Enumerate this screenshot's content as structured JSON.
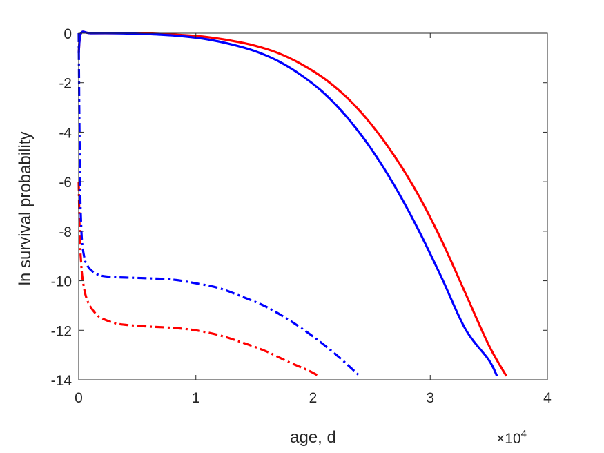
{
  "chart_data": {
    "type": "line",
    "title": "",
    "xlabel": "age, d",
    "ylabel": "ln survival probability",
    "xlim": [
      0,
      40000
    ],
    "ylim": [
      -14,
      0
    ],
    "x_ticks": [
      0,
      10000,
      20000,
      30000,
      40000
    ],
    "x_tick_labels": [
      "0",
      "1",
      "2",
      "3",
      "4"
    ],
    "y_ticks": [
      0,
      -2,
      -4,
      -6,
      -8,
      -10,
      -12,
      -14
    ],
    "y_tick_labels": [
      "0",
      "-2",
      "-4",
      "-6",
      "-8",
      "-10",
      "-12",
      "-14"
    ],
    "x_exponent": {
      "base": "×10",
      "power": "4"
    },
    "grid": false,
    "legend": "none",
    "series": [
      {
        "color": "#ff0000",
        "style": "solid",
        "x": [
          0,
          200,
          1000,
          3000,
          5000,
          7000,
          9000,
          11000,
          13000,
          15000,
          17000,
          19000,
          21000,
          23000,
          25000,
          27000,
          29000,
          31000,
          33000,
          35000,
          36500
        ],
        "y": [
          -0.8,
          0,
          0,
          0,
          0,
          -0.03,
          -0.08,
          -0.16,
          -0.3,
          -0.5,
          -0.8,
          -1.25,
          -1.85,
          -2.65,
          -3.7,
          -5.0,
          -6.55,
          -8.4,
          -10.5,
          -12.6,
          -13.85
        ]
      },
      {
        "color": "#0000ff",
        "style": "solid",
        "x": [
          0,
          200,
          1000,
          3000,
          5000,
          7000,
          9000,
          11000,
          13000,
          15000,
          17000,
          19000,
          21000,
          23000,
          25000,
          27000,
          29000,
          31000,
          33000,
          35000,
          35700
        ],
        "y": [
          -0.8,
          0,
          0,
          0,
          -0.02,
          -0.06,
          -0.13,
          -0.25,
          -0.45,
          -0.72,
          -1.12,
          -1.7,
          -2.45,
          -3.45,
          -4.7,
          -6.2,
          -7.95,
          -9.9,
          -11.95,
          -13.2,
          -13.85
        ]
      },
      {
        "color": "#ff0000",
        "style": "dashdot",
        "x": [
          0,
          100,
          200,
          300,
          500,
          700,
          1000,
          1500,
          2000,
          3000,
          4000,
          6000,
          8000,
          10000,
          12000,
          14000,
          16000,
          18000,
          19500,
          20500
        ],
        "y": [
          -6.0,
          -8.3,
          -9.2,
          -9.8,
          -10.4,
          -10.75,
          -11.05,
          -11.35,
          -11.52,
          -11.7,
          -11.78,
          -11.85,
          -11.9,
          -12.0,
          -12.2,
          -12.5,
          -12.85,
          -13.3,
          -13.6,
          -13.85
        ]
      },
      {
        "color": "#0000ff",
        "style": "dashdot",
        "x": [
          0,
          50,
          100,
          150,
          200,
          300,
          500,
          700,
          1000,
          1500,
          2000,
          3000,
          4000,
          6000,
          8000,
          10000,
          12000,
          14000,
          16000,
          18000,
          20000,
          22000,
          24000
        ],
        "y": [
          0,
          -3.0,
          -5.2,
          -6.8,
          -7.6,
          -8.5,
          -9.1,
          -9.35,
          -9.55,
          -9.72,
          -9.8,
          -9.85,
          -9.87,
          -9.9,
          -9.95,
          -10.1,
          -10.3,
          -10.65,
          -11.05,
          -11.6,
          -12.25,
          -13.0,
          -13.85
        ]
      }
    ]
  }
}
